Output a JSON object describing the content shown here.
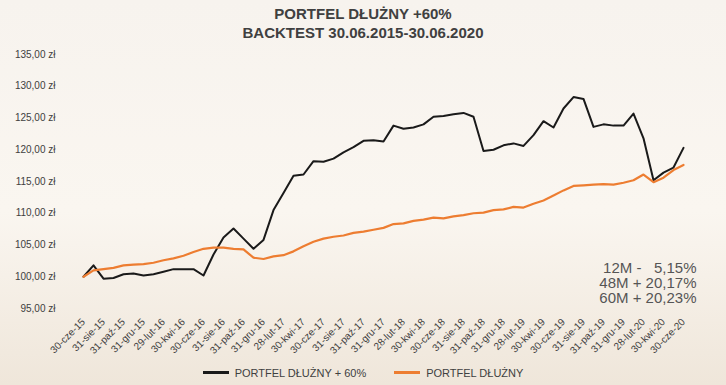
{
  "chart_data": {
    "type": "line",
    "title": "PORTFEL DŁUŻNY +60%",
    "subtitle": "BACKTEST 30.06.2015-30.06.2020",
    "categories": [
      "30-cze-15",
      null,
      "31-sie-15",
      null,
      "31-paź-15",
      null,
      "31-gru-15",
      null,
      "29-lut-16",
      null,
      "30-kwi-16",
      null,
      "30-cze-16",
      null,
      "31-sie-16",
      null,
      "31-paź-16",
      null,
      "31-gru-16",
      null,
      "28-lut-17",
      null,
      "30-kwi-17",
      null,
      "30-cze-17",
      null,
      "31-sie-17",
      null,
      "31-paź-17",
      null,
      "31-gru-17",
      null,
      "28-lut-18",
      null,
      "30-kwi-18",
      null,
      "30-cze-18",
      null,
      "31-sie-18",
      null,
      "31-paź-18",
      null,
      "31-gru-18",
      null,
      "28-lut-19",
      null,
      "30-kwi-19",
      null,
      "30-cze-19",
      null,
      "31-sie-19",
      null,
      "31-paź-19",
      null,
      "31-gru-19",
      null,
      "28-lut-20",
      null,
      "30-kwi-20",
      null,
      "30-cze-20"
    ],
    "series": [
      {
        "name": "PORTFEL DŁUŻNY + 60%",
        "color": "#1a1a1a",
        "values": [
          100,
          101.8,
          99.7,
          99.8,
          100.4,
          100.5,
          100.2,
          100.4,
          100.8,
          101.2,
          101.2,
          101.2,
          100.2,
          103.5,
          106.2,
          107.6,
          106.0,
          104.4,
          105.8,
          110.5,
          113.2,
          115.9,
          116.1,
          118.2,
          118.1,
          118.6,
          119.6,
          120.4,
          121.4,
          121.5,
          121.3,
          123.8,
          123.3,
          123.5,
          124.0,
          125.2,
          125.3,
          125.6,
          125.8,
          125.2,
          119.8,
          120.0,
          120.7,
          121.0,
          120.6,
          122.3,
          124.5,
          123.5,
          126.5,
          128.3,
          128.0,
          123.6,
          124.0,
          123.8,
          123.8,
          125.7,
          121.8,
          115.2,
          116.4,
          117.2,
          120.3
        ]
      },
      {
        "name": "PORTFEL DŁUŻNY",
        "color": "#ed7d31",
        "values": [
          100,
          101.0,
          101.2,
          101.4,
          101.8,
          101.9,
          102.0,
          102.2,
          102.6,
          102.9,
          103.3,
          103.9,
          104.4,
          104.6,
          104.6,
          104.4,
          104.3,
          103.0,
          102.8,
          103.2,
          103.4,
          104.0,
          104.8,
          105.5,
          106.0,
          106.3,
          106.5,
          106.9,
          107.1,
          107.4,
          107.7,
          108.3,
          108.4,
          108.8,
          109.0,
          109.3,
          109.2,
          109.5,
          109.7,
          110.0,
          110.1,
          110.5,
          110.6,
          111.0,
          110.9,
          111.5,
          112.0,
          112.8,
          113.6,
          114.3,
          114.4,
          114.5,
          114.6,
          114.5,
          114.8,
          115.2,
          116.1,
          114.9,
          115.6,
          116.8,
          117.6
        ]
      }
    ],
    "ylim": [
      95,
      135
    ],
    "yticks": [
      {
        "value": 95,
        "label": "95,00 zł"
      },
      {
        "value": 100,
        "label": "100,00 zł"
      },
      {
        "value": 105,
        "label": "105,00 zł"
      },
      {
        "value": 110,
        "label": "110,00 zł"
      },
      {
        "value": 115,
        "label": "115,00 zł"
      },
      {
        "value": 120,
        "label": "120,00 zł"
      },
      {
        "value": 125,
        "label": "125,00 zł"
      },
      {
        "value": 130,
        "label": "130,00 zł"
      },
      {
        "value": 135,
        "label": "135,00 zł"
      }
    ],
    "annotations": [
      "12M -   5,15%",
      "48M + 20,17%",
      "60M + 20,23%"
    ],
    "grid": false,
    "legend": "bottom"
  }
}
